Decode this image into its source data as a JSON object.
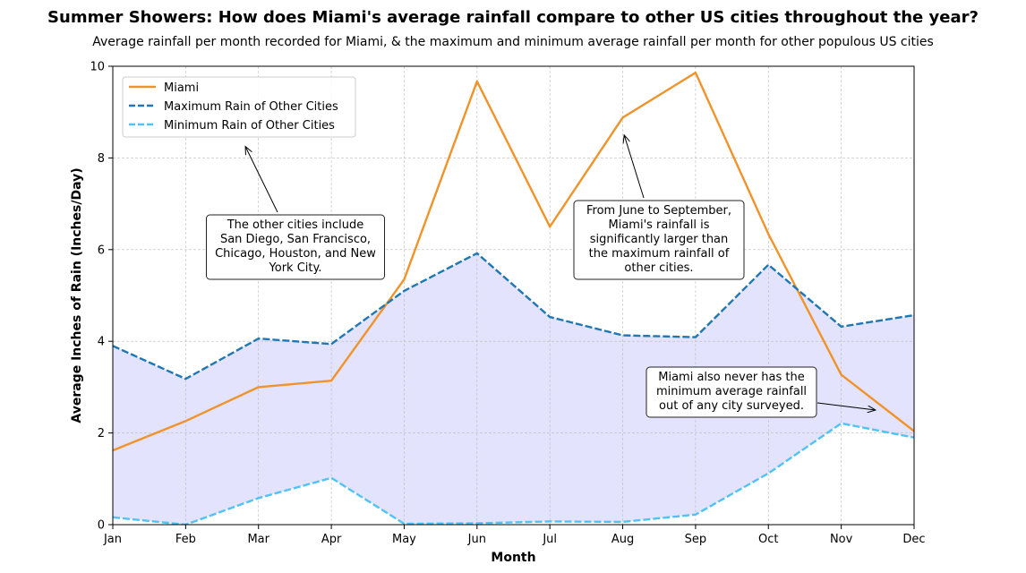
{
  "chart_data": {
    "type": "line",
    "title": "Summer Showers: How does Miami's average rainfall compare to other US cities throughout the year?",
    "subtitle": "Average rainfall per month recorded for Miami, & the maximum and minimum average rainfall per month for other populous US cities",
    "xlabel": "Month",
    "ylabel": "Average Inches of Rain (Inches/Day)",
    "ylim": [
      0,
      10
    ],
    "yticks": [
      0,
      2,
      4,
      6,
      8,
      10
    ],
    "grid": true,
    "legend_position": "upper-left",
    "categories": [
      "Jan",
      "Feb",
      "Mar",
      "Apr",
      "May",
      "Jun",
      "Jul",
      "Aug",
      "Sep",
      "Oct",
      "Nov",
      "Dec"
    ],
    "fill_between": {
      "upper_series": "Maximum Rain of Other Cities",
      "lower_series": "Minimum Rain of Other Cities",
      "color": "#e3e3fd"
    },
    "series": [
      {
        "name": "Miami",
        "color": "#f0932b",
        "dashed": false,
        "values": [
          1.62,
          2.26,
          3.0,
          3.14,
          5.35,
          9.67,
          6.5,
          8.88,
          9.86,
          6.34,
          3.27,
          2.04
        ]
      },
      {
        "name": "Maximum Rain of Other Cities",
        "color": "#1f77b4",
        "dashed": true,
        "values": [
          3.9,
          3.18,
          4.06,
          3.94,
          5.1,
          5.92,
          4.53,
          4.13,
          4.09,
          5.67,
          4.32,
          4.57
        ]
      },
      {
        "name": "Minimum Rain of Other Cities",
        "color": "#4fc3f7",
        "dashed": true,
        "values": [
          0.16,
          0.0,
          0.58,
          1.02,
          0.02,
          0.03,
          0.07,
          0.06,
          0.22,
          1.12,
          2.21,
          1.9
        ]
      }
    ],
    "annotations": [
      {
        "lines": [
          "The other cities include",
          "San Diego, San Francisco,",
          "Chicago, Houston, and New",
          "York City."
        ],
        "arrow_to": [
          1.82,
          8.25
        ]
      },
      {
        "lines": [
          "From June to September,",
          "Miami's rainfall is",
          "significantly larger than",
          "the maximum rainfall of",
          "other cities."
        ],
        "arrow_to": [
          7.02,
          8.5
        ]
      },
      {
        "lines": [
          "Miami also never has the",
          "minimum average rainfall",
          "out of any city surveyed."
        ],
        "arrow_to": [
          10.47,
          2.5
        ]
      }
    ]
  }
}
